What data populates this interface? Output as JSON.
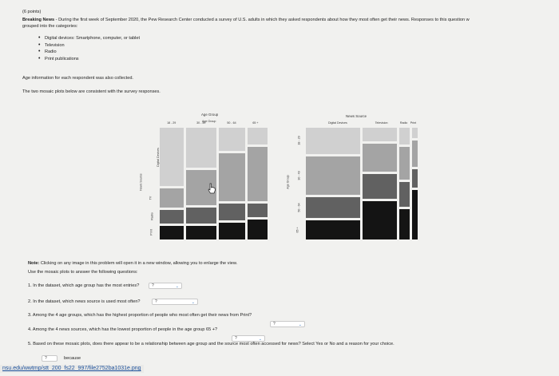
{
  "header": {
    "points": "(6 points)",
    "intro_bold": "Breaking News",
    "intro_line1": " - During the first week of September 2020, the Pew Research Center conducted a survey of U.S. adults in which they asked respondents about how they most often get their news. Responses to this question w",
    "intro_line2": "grouped into the categories:"
  },
  "categories": [
    "Digital devices: Smartphone, computer, or tablet",
    "Television",
    "Radio",
    "Print publications"
  ],
  "age_note": "Age information for each respondent was also collected.",
  "consistent_note": "The two mosaic plots below are consistent with the survey responses.",
  "mosaic_left": {
    "title": "Age Group",
    "x_label": "Age Group",
    "y_label": "News Source",
    "age_groups": [
      "18 - 29",
      "30 - 49",
      "50 - 64",
      "65 +"
    ],
    "source_labels_left": [
      "Digital Devices",
      "TV",
      "Radio",
      "Print"
    ],
    "column_widths": [
      0.24,
      0.3,
      0.26,
      0.2
    ],
    "columns": [
      [
        0.56,
        0.18,
        0.13,
        0.13
      ],
      [
        0.38,
        0.34,
        0.15,
        0.13
      ],
      [
        0.22,
        0.46,
        0.16,
        0.16
      ],
      [
        0.16,
        0.52,
        0.13,
        0.19
      ]
    ]
  },
  "mosaic_right": {
    "title": "News Source",
    "y_label": "Age Group",
    "sources": [
      "Digital Devices",
      "Television",
      "Radio",
      "Print"
    ],
    "age_labels_left": [
      "18 - 29",
      "30 - 49",
      "50 - 64",
      "65 +"
    ],
    "column_widths": [
      0.52,
      0.33,
      0.1,
      0.05
    ],
    "columns": [
      [
        0.25,
        0.37,
        0.2,
        0.18
      ],
      [
        0.13,
        0.27,
        0.23,
        0.37
      ],
      [
        0.16,
        0.31,
        0.24,
        0.29
      ],
      [
        0.1,
        0.25,
        0.18,
        0.47
      ]
    ]
  },
  "note": {
    "bold": "Note:",
    "text": " Clicking on any image in this problem will open it in a new window, allowing you to enlarge the view."
  },
  "instructions": "Use the mosaic plots to answer the following questions:",
  "questions": [
    {
      "text": "1. In the dataset, which age group has the most entries?",
      "answer": "?"
    },
    {
      "text": "2. In the dataset, which news source is used most often?",
      "answer": "?"
    },
    {
      "text": "3. Among the 4 age groups, which has the highest proportion of people who most often get their news from Print?",
      "answer": "?"
    },
    {
      "text": "4. Among the 4 news sources, which has the lowest proportion of people in the age group 65 +?",
      "answer": "?"
    },
    {
      "text": "5. Based on these mosaic plots, does there appear to be a relationship between age group and the source most often accessed for news? Select Yes or No and a reason for your choice.",
      "answer": "?"
    }
  ],
  "because_label": "because",
  "colors": {
    "shades": [
      "#d0d0d0",
      "#a4a4a4",
      "#616161",
      "#141414"
    ],
    "accent": "#3a7cc4"
  },
  "status_url": "nsu.edu/wwtmp/stt_200_fs22_997/file2752ba1031e.png"
}
